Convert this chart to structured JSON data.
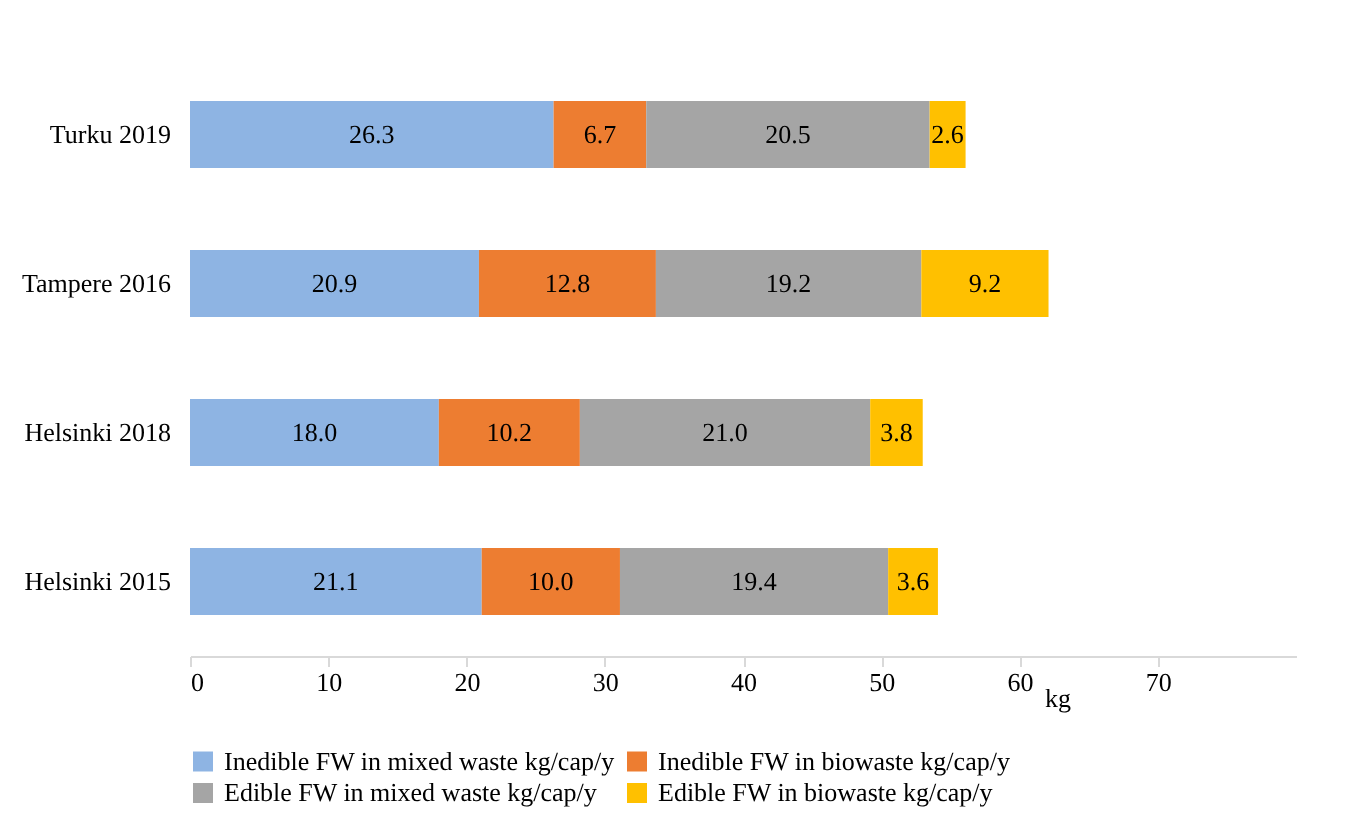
{
  "chart_data": {
    "type": "bar",
    "orientation": "horizontal",
    "stacked": true,
    "xlabel": "kg",
    "categories": [
      "Turku 2019",
      "Tampere 2016",
      "Helsinki 2018",
      "Helsinki 2015"
    ],
    "series": [
      {
        "name": "Inedible FW in mixed waste kg/cap/y",
        "color": "#8eb4e3",
        "values": [
          26.3,
          20.9,
          18.0,
          21.1
        ],
        "value_labels": [
          "26.3",
          "20.9",
          "18.0",
          "21.1"
        ]
      },
      {
        "name": "Inedible FW in  biowaste kg/cap/y",
        "color": "#ed7d31",
        "values": [
          6.7,
          12.8,
          10.2,
          10.0
        ],
        "value_labels": [
          "6.7",
          "12.8",
          "10.2",
          "10.0"
        ]
      },
      {
        "name": "Edible FW in mixed waste kg/cap/y",
        "color": "#a5a5a5",
        "values": [
          20.5,
          19.2,
          21.0,
          19.4
        ],
        "value_labels": [
          "20.5",
          "19.2",
          "21.0",
          "19.4"
        ]
      },
      {
        "name": "Edible FW in biowaste kg/cap/y",
        "color": "#ffc000",
        "values": [
          2.6,
          9.2,
          3.8,
          3.6
        ],
        "value_labels": [
          "2.6",
          "9.2",
          "3.8",
          "3.6"
        ]
      }
    ],
    "xlim": [
      0,
      80
    ],
    "xticks": [
      0,
      10,
      20,
      30,
      40,
      50,
      60,
      70
    ],
    "grid": false,
    "legend": "bottom"
  }
}
